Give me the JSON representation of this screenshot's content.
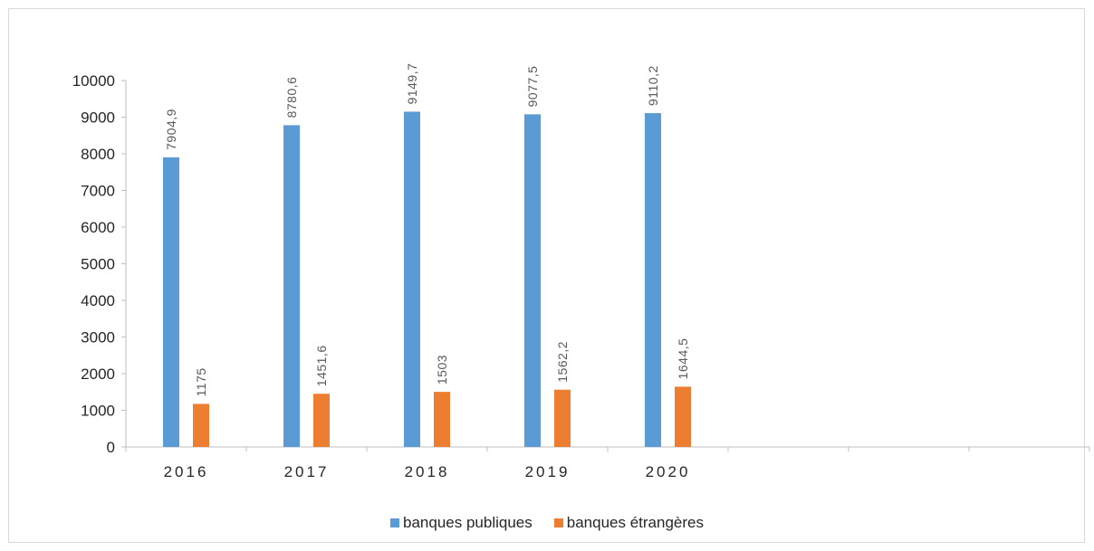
{
  "chart_data": {
    "type": "bar",
    "categories": [
      "2016",
      "2017",
      "2018",
      "2019",
      "2020",
      "",
      "",
      ""
    ],
    "series": [
      {
        "name": "banques publiques",
        "color": "#5b9bd5",
        "values": [
          7904.9,
          8780.6,
          9149.7,
          9077.5,
          9110.2,
          null,
          null,
          null
        ],
        "labels": [
          "7904,9",
          "8780,6",
          "9149,7",
          "9077,5",
          "9110,2",
          "",
          "",
          ""
        ]
      },
      {
        "name": "banques étrangères",
        "color": "#ed7d31",
        "values": [
          1175,
          1451.6,
          1503,
          1562.2,
          1644.5,
          null,
          null,
          null
        ],
        "labels": [
          "1175",
          "1451,6",
          "1503",
          "1562,2",
          "1644,5",
          "",
          "",
          ""
        ]
      }
    ],
    "yticks": [
      "0",
      "1000",
      "2000",
      "3000",
      "4000",
      "5000",
      "6000",
      "7000",
      "8000",
      "9000",
      "10000"
    ],
    "ylim": [
      0,
      10000
    ],
    "grid": false,
    "legend_position": "bottom"
  }
}
